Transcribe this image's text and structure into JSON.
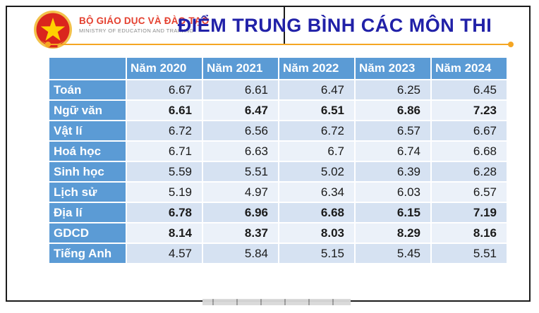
{
  "slide": {
    "org_name": "BỘ GIÁO DỤC VÀ ĐÀO TẠO",
    "org_subtitle": "MINISTRY OF EDUCATION AND TRAINING",
    "title": "ĐIỂM TRUNG BÌNH CÁC MÔN THI"
  },
  "colors": {
    "header_blue": "#5B9BD5",
    "band_dark": "#D6E2F2",
    "band_light": "#EBF1F9",
    "highlight_red": "#FF0000",
    "title_blue": "#2121A8",
    "org_red": "#E4402F",
    "org_gray": "#8A8A8A",
    "divider_orange": "#F5A623",
    "emblem_red": "#DA251D",
    "emblem_gold": "#F3C14B"
  },
  "chart_data": {
    "type": "table",
    "title": "ĐIỂM TRUNG BÌNH CÁC MÔN THI",
    "columns": [
      "",
      "Năm 2020",
      "Năm 2021",
      "Năm 2022",
      "Năm 2023",
      "Năm 2024"
    ],
    "rows": [
      {
        "label": "Toán",
        "values": [
          "6.67",
          "6.61",
          "6.47",
          "6.25",
          "6.45"
        ],
        "styles": [
          "normal",
          "normal",
          "normal",
          "normal",
          "normal"
        ]
      },
      {
        "label": "Ngữ văn",
        "values": [
          "6.61",
          "6.47",
          "6.51",
          "6.86",
          "7.23"
        ],
        "styles": [
          "bold",
          "bold",
          "bold",
          "bold-red",
          "bold-red"
        ]
      },
      {
        "label": "Vật lí",
        "values": [
          "6.72",
          "6.56",
          "6.72",
          "6.57",
          "6.67"
        ],
        "styles": [
          "normal",
          "normal",
          "normal",
          "normal",
          "normal"
        ]
      },
      {
        "label": "Hoá học",
        "values": [
          "6.71",
          "6.63",
          "6.7",
          "6.74",
          "6.68"
        ],
        "styles": [
          "normal",
          "normal",
          "normal",
          "normal",
          "normal"
        ]
      },
      {
        "label": "Sinh học",
        "values": [
          "5.59",
          "5.51",
          "5.02",
          "6.39",
          "6.28"
        ],
        "styles": [
          "normal",
          "normal",
          "normal",
          "normal",
          "normal"
        ]
      },
      {
        "label": "Lịch sử",
        "values": [
          "5.19",
          "4.97",
          "6.34",
          "6.03",
          "6.57"
        ],
        "styles": [
          "normal",
          "normal",
          "normal",
          "normal",
          "normal"
        ]
      },
      {
        "label": "Địa lí",
        "values": [
          "6.78",
          "6.96",
          "6.68",
          "6.15",
          "7.19"
        ],
        "styles": [
          "bold",
          "bold",
          "bold",
          "bold-red",
          "bold-red"
        ]
      },
      {
        "label": "GDCD",
        "values": [
          "8.14",
          "8.37",
          "8.03",
          "8.29",
          "8.16"
        ],
        "styles": [
          "bold-red",
          "bold-red",
          "bold-red",
          "bold-red",
          "bold-red"
        ]
      },
      {
        "label": "Tiếng Anh",
        "values": [
          "4.57",
          "5.84",
          "5.15",
          "5.45",
          "5.51"
        ],
        "styles": [
          "normal",
          "normal",
          "normal",
          "normal",
          "normal"
        ]
      }
    ]
  }
}
